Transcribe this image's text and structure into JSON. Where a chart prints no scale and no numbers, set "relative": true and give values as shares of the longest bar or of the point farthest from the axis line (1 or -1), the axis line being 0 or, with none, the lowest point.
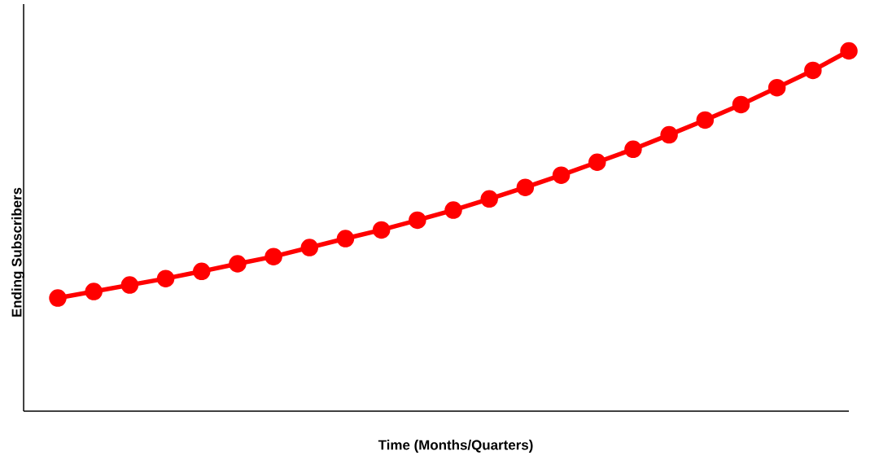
{
  "chart_data": {
    "type": "line",
    "xlabel": "Time (Months/Quarters)",
    "ylabel": "Ending Subscribers",
    "relative": true,
    "marker": "circle",
    "line_style": "solid",
    "categories": [
      null,
      null,
      null,
      null,
      null,
      null,
      null,
      null,
      null,
      null,
      null,
      null,
      null,
      null,
      null,
      null,
      null,
      null,
      null,
      null,
      null,
      null,
      null
    ],
    "series": [
      {
        "color": "#ff0000",
        "values": [
          0.314,
          0.332,
          0.35,
          0.368,
          0.388,
          0.409,
          0.429,
          0.454,
          0.479,
          0.503,
          0.53,
          0.558,
          0.589,
          0.621,
          0.655,
          0.691,
          0.727,
          0.767,
          0.808,
          0.851,
          0.898,
          0.946,
          1.0
        ]
      }
    ]
  }
}
